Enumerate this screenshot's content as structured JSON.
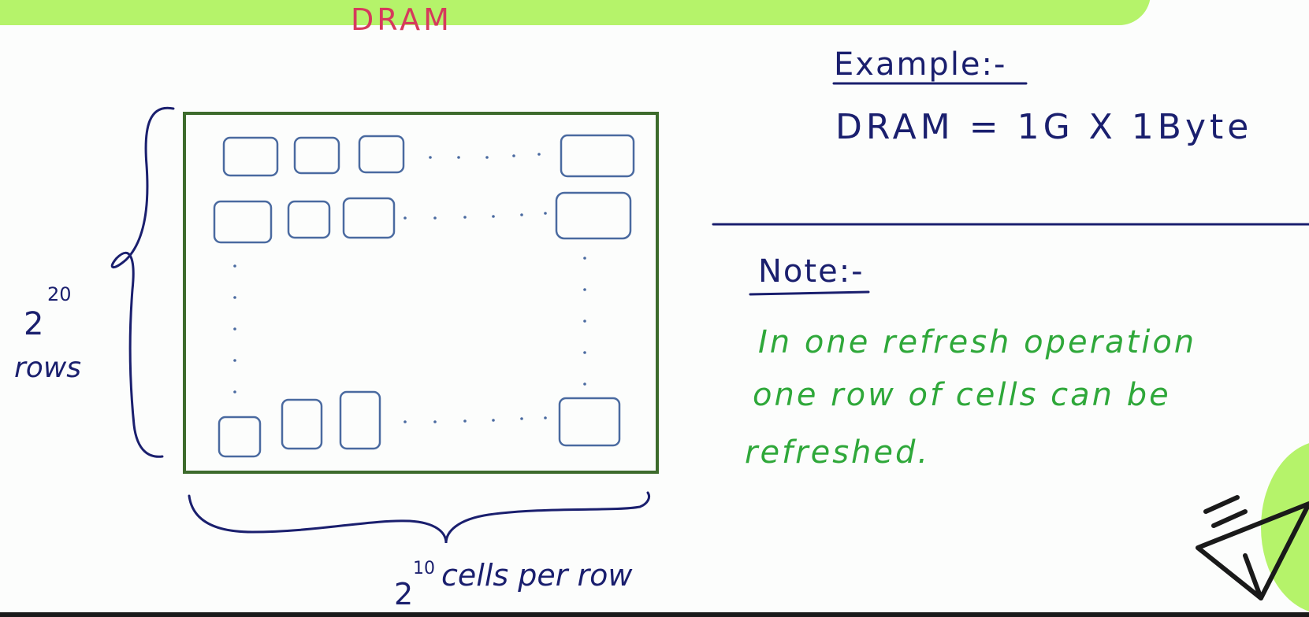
{
  "title": "DRAM",
  "rows": {
    "base": "2",
    "exponent": "20",
    "label": "rows"
  },
  "cells": {
    "base": "2",
    "exponent": "10",
    "label": "cells per row"
  },
  "example": {
    "heading": "Example:-",
    "equation": "DRAM = 1G X 1Byte"
  },
  "note": {
    "heading": "Note:-",
    "lines": [
      "In one refresh operation",
      "one row of cells can be",
      "refreshed."
    ]
  },
  "colors": {
    "accent_green": "#b5f36a",
    "title_pink": "#d63a5c",
    "ink_navy": "#1a1f6e",
    "note_green": "#2fa83a",
    "frame_green": "#3d6b2c",
    "cell_blue": "#4a6aa0"
  },
  "icons": [
    "paper-plane-icon"
  ]
}
